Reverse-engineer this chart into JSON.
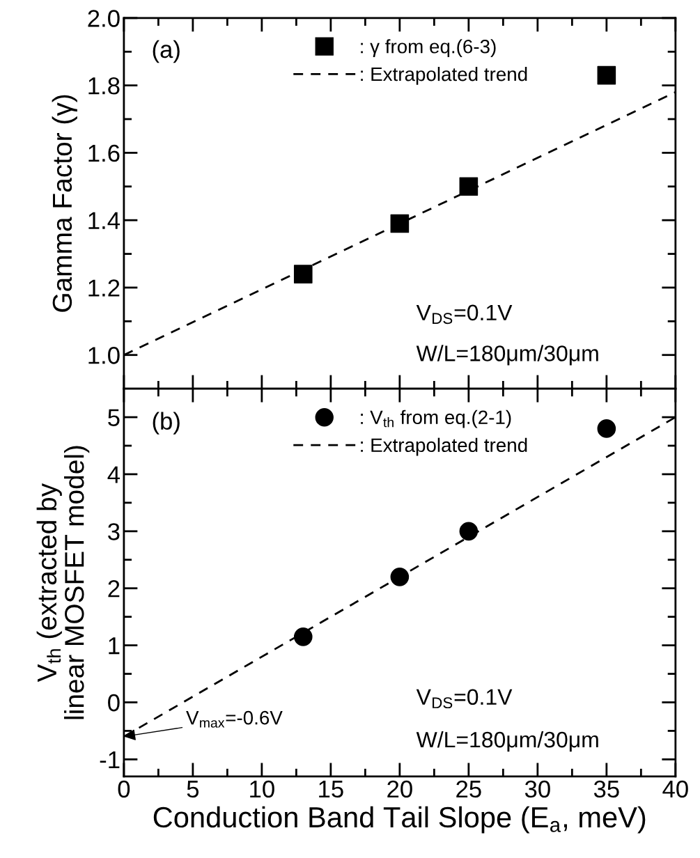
{
  "chart_data": [
    {
      "type": "scatter",
      "ylabel": "Gamma Factor (γ)",
      "annotations": [
        "(a)",
        "V$_{DS}$=0.1V",
        "W/L=180μm/30μm"
      ],
      "xlim": [
        0,
        40
      ],
      "xticks": [
        0,
        {
          "value": 2.5,
          "label": null
        },
        5,
        {
          "value": 7.5,
          "label": null
        },
        10,
        {
          "value": 12.5,
          "label": null
        },
        15,
        {
          "value": 17.5,
          "label": null
        },
        20,
        {
          "value": 22.5,
          "label": null
        },
        25,
        {
          "value": 27.5,
          "label": null
        },
        30,
        {
          "value": 32.5,
          "label": null
        },
        35,
        {
          "value": 37.5,
          "label": null
        },
        40
      ],
      "ylim": [
        0.9,
        2.0
      ],
      "yticks": [
        {
          "value": 1.0,
          "label": "1.0"
        },
        {
          "value": 1.1,
          "label": null
        },
        1.2,
        {
          "value": 1.3,
          "label": null
        },
        1.4,
        {
          "value": 1.5,
          "label": null
        },
        1.6,
        {
          "value": 1.7,
          "label": null
        },
        1.8,
        {
          "value": 1.9,
          "label": null
        },
        {
          "value": 2.0,
          "label": "2.0"
        }
      ],
      "tick_labels": "y",
      "grid": false,
      "legend": "top",
      "series": [
        {
          "name": ": γ from eq.(6-3)",
          "marker": "square",
          "color": "#000000",
          "x": [
            13,
            20,
            25,
            35
          ],
          "values": [
            1.24,
            1.39,
            1.5,
            1.83
          ]
        },
        {
          "name": ": Extrapolated trend",
          "type": "line",
          "line_style": "dashed",
          "marker": "none",
          "color": "#000000",
          "x": [
            0,
            40
          ],
          "values": [
            1.0,
            1.78
          ]
        }
      ]
    },
    {
      "type": "scatter",
      "xlabel": "Conduction Band Tail Slope (E$_{a}$, meV)",
      "ylabel": "V$_{th}$ (extracted by\nlinear MOSFET model)",
      "annotations": [
        "(b)",
        "V$_{DS}$=0.1V",
        "W/L=180μm/30μm",
        {
          "text": "V$_{max}$=-0.6V",
          "x": 0,
          "y": -0.6
        }
      ],
      "xlim": [
        0,
        40
      ],
      "xticks": [
        0,
        {
          "value": 2.5,
          "label": null
        },
        5,
        {
          "value": 7.5,
          "label": null
        },
        10,
        {
          "value": 12.5,
          "label": null
        },
        15,
        {
          "value": 17.5,
          "label": null
        },
        20,
        {
          "value": 22.5,
          "label": null
        },
        25,
        {
          "value": 27.5,
          "label": null
        },
        30,
        {
          "value": 32.5,
          "label": null
        },
        35,
        {
          "value": 37.5,
          "label": null
        },
        40
      ],
      "ylim": [
        -1.3,
        5.5
      ],
      "yticks": [
        -1,
        {
          "value": -0.5,
          "label": null
        },
        0,
        {
          "value": 0.5,
          "label": null
        },
        1,
        {
          "value": 1.5,
          "label": null
        },
        2,
        {
          "value": 2.5,
          "label": null
        },
        3,
        {
          "value": 3.5,
          "label": null
        },
        4,
        {
          "value": 4.5,
          "label": null
        },
        5
      ],
      "grid": false,
      "legend": "top",
      "series": [
        {
          "name": ": V$_{th}$ from eq.(2-1)",
          "marker": "circle",
          "color": "#000000",
          "x": [
            13,
            20,
            25,
            35
          ],
          "values": [
            1.15,
            2.2,
            3.0,
            4.8
          ]
        },
        {
          "name": ": Extrapolated trend",
          "type": "line",
          "line_style": "dashed",
          "marker": "none",
          "color": "#000000",
          "x": [
            0,
            40
          ],
          "values": [
            -0.6,
            5.0
          ]
        }
      ]
    }
  ]
}
